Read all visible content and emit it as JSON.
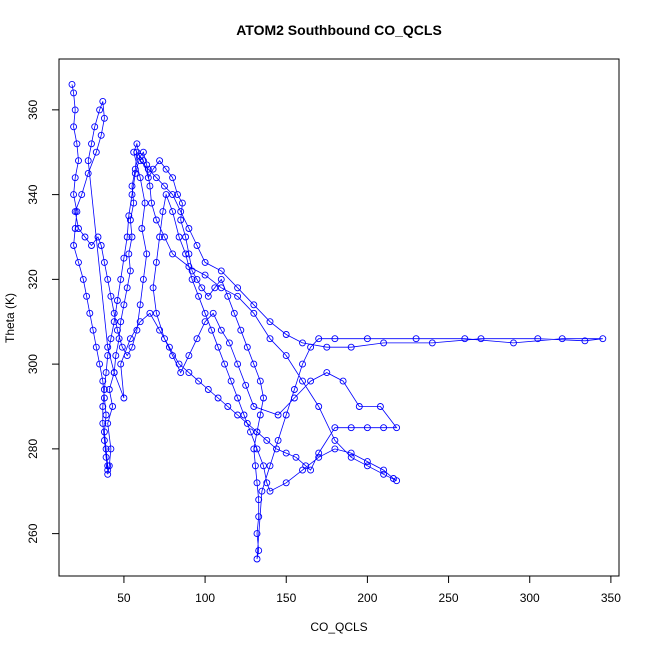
{
  "chart_data": {
    "type": "scatter",
    "title": "ATOM2 Southbound CO_QCLS",
    "xlabel": "CO_QCLS",
    "ylabel": "Theta (K)",
    "xlim": [
      10,
      355
    ],
    "ylim": [
      250,
      372
    ],
    "xticks": [
      50,
      100,
      150,
      200,
      250,
      300,
      350
    ],
    "yticks": [
      260,
      280,
      300,
      320,
      340,
      360
    ],
    "grid": false,
    "marker": "open-circle",
    "connected": true,
    "color": "#0000ff",
    "series": [
      {
        "name": "",
        "points": [
          [
            18,
            366
          ],
          [
            19,
            364
          ],
          [
            20,
            360
          ],
          [
            19,
            356
          ],
          [
            21,
            352
          ],
          [
            22,
            348
          ],
          [
            20,
            344
          ],
          [
            19,
            340
          ],
          [
            21,
            336
          ],
          [
            20,
            332
          ],
          [
            19,
            328
          ],
          [
            22,
            324
          ],
          [
            25,
            320
          ],
          [
            27,
            316
          ],
          [
            29,
            312
          ],
          [
            31,
            308
          ],
          [
            33,
            304
          ],
          [
            35,
            300
          ],
          [
            37,
            296
          ],
          [
            38,
            292
          ],
          [
            39,
            288
          ],
          [
            38,
            284
          ],
          [
            39,
            280
          ],
          [
            40,
            276
          ],
          [
            40,
            274
          ],
          [
            41,
            276
          ],
          [
            42,
            280
          ],
          [
            40,
            286
          ],
          [
            43,
            290
          ],
          [
            41,
            294
          ],
          [
            44,
            298
          ],
          [
            45,
            302
          ],
          [
            47,
            306
          ],
          [
            48,
            310
          ],
          [
            50,
            314
          ],
          [
            52,
            318
          ],
          [
            54,
            322
          ],
          [
            53,
            326
          ],
          [
            55,
            330
          ],
          [
            54,
            334
          ],
          [
            56,
            338
          ],
          [
            55,
            342
          ],
          [
            57,
            346
          ],
          [
            58,
            350
          ],
          [
            62,
            348
          ],
          [
            65,
            344
          ],
          [
            68,
            346
          ],
          [
            72,
            348
          ],
          [
            76,
            346
          ],
          [
            80,
            344
          ],
          [
            83,
            340
          ],
          [
            86,
            338
          ],
          [
            85,
            334
          ],
          [
            88,
            330
          ],
          [
            90,
            326
          ],
          [
            92,
            322
          ],
          [
            95,
            320
          ],
          [
            98,
            318
          ],
          [
            102,
            316
          ],
          [
            106,
            318
          ],
          [
            110,
            320
          ],
          [
            114,
            316
          ],
          [
            118,
            312
          ],
          [
            122,
            308
          ],
          [
            126,
            304
          ],
          [
            130,
            300
          ],
          [
            134,
            296
          ],
          [
            136,
            292
          ],
          [
            134,
            288
          ],
          [
            132,
            284
          ],
          [
            130,
            280
          ],
          [
            131,
            276
          ],
          [
            132,
            272
          ],
          [
            133,
            268
          ],
          [
            133,
            264
          ],
          [
            132,
            260
          ],
          [
            133,
            256
          ],
          [
            132,
            254
          ],
          [
            135,
            270
          ],
          [
            140,
            276
          ],
          [
            145,
            282
          ],
          [
            150,
            288
          ],
          [
            155,
            294
          ],
          [
            160,
            300
          ],
          [
            165,
            304
          ],
          [
            170,
            306
          ],
          [
            180,
            306
          ],
          [
            200,
            306
          ],
          [
            230,
            306
          ],
          [
            260,
            306
          ],
          [
            290,
            305
          ],
          [
            320,
            306
          ],
          [
            345,
            306
          ],
          [
            334,
            305.5
          ],
          [
            305,
            306
          ],
          [
            270,
            306
          ],
          [
            240,
            305
          ],
          [
            210,
            305
          ],
          [
            190,
            304
          ],
          [
            175,
            304
          ],
          [
            160,
            305
          ],
          [
            150,
            307
          ],
          [
            140,
            310
          ],
          [
            130,
            314
          ],
          [
            120,
            318
          ],
          [
            110,
            322
          ],
          [
            100,
            324
          ],
          [
            95,
            328
          ],
          [
            90,
            332
          ],
          [
            85,
            336
          ],
          [
            80,
            340
          ],
          [
            75,
            342
          ],
          [
            70,
            344
          ],
          [
            65,
            346
          ],
          [
            60,
            348
          ],
          [
            58,
            352
          ],
          [
            56,
            350
          ],
          [
            60,
            344
          ],
          [
            63,
            338
          ],
          [
            61,
            332
          ],
          [
            64,
            326
          ],
          [
            62,
            320
          ],
          [
            60,
            314
          ],
          [
            58,
            308
          ],
          [
            55,
            304
          ],
          [
            52,
            302
          ],
          [
            49,
            304
          ],
          [
            46,
            308
          ],
          [
            44,
            312
          ],
          [
            42,
            316
          ],
          [
            40,
            320
          ],
          [
            38,
            324
          ],
          [
            36,
            328
          ],
          [
            34,
            330
          ],
          [
            30,
            328
          ],
          [
            26,
            330
          ],
          [
            22,
            332
          ],
          [
            20,
            336
          ],
          [
            24,
            340
          ],
          [
            28,
            345
          ],
          [
            33,
            350
          ],
          [
            36,
            354
          ],
          [
            38,
            358
          ],
          [
            37,
            362
          ],
          [
            35,
            360
          ],
          [
            32,
            356
          ],
          [
            30,
            352
          ],
          [
            28,
            348
          ],
          [
            40,
            304
          ],
          [
            44,
            298
          ],
          [
            50,
            292
          ],
          [
            48,
            300
          ],
          [
            54,
            306
          ],
          [
            60,
            310
          ],
          [
            66,
            312
          ],
          [
            72,
            308
          ],
          [
            78,
            304
          ],
          [
            84,
            300
          ],
          [
            90,
            298
          ],
          [
            96,
            296
          ],
          [
            102,
            294
          ],
          [
            108,
            292
          ],
          [
            114,
            290
          ],
          [
            120,
            288
          ],
          [
            126,
            286
          ],
          [
            132,
            284
          ],
          [
            138,
            282
          ],
          [
            144,
            280
          ],
          [
            150,
            279
          ],
          [
            156,
            278
          ],
          [
            162,
            276
          ],
          [
            165,
            275
          ],
          [
            170,
            279
          ],
          [
            180,
            285
          ],
          [
            190,
            285
          ],
          [
            200,
            285
          ],
          [
            210,
            285
          ],
          [
            218,
            285
          ],
          [
            208,
            290
          ],
          [
            195,
            290
          ],
          [
            185,
            296
          ],
          [
            175,
            298
          ],
          [
            165,
            296
          ],
          [
            155,
            292
          ],
          [
            145,
            288
          ],
          [
            130,
            290
          ],
          [
            125,
            295
          ],
          [
            120,
            300
          ],
          [
            115,
            305
          ],
          [
            110,
            308
          ],
          [
            105,
            312
          ],
          [
            100,
            310
          ],
          [
            95,
            306
          ],
          [
            90,
            302
          ],
          [
            85,
            298
          ],
          [
            80,
            302
          ],
          [
            75,
            306
          ],
          [
            70,
            312
          ],
          [
            68,
            318
          ],
          [
            70,
            324
          ],
          [
            72,
            330
          ],
          [
            74,
            336
          ],
          [
            76,
            340
          ],
          [
            80,
            336
          ],
          [
            84,
            330
          ],
          [
            88,
            326
          ],
          [
            92,
            320
          ],
          [
            96,
            316
          ],
          [
            100,
            312
          ],
          [
            104,
            308
          ],
          [
            108,
            304
          ],
          [
            112,
            300
          ],
          [
            116,
            296
          ],
          [
            120,
            292
          ],
          [
            124,
            288
          ],
          [
            128,
            284
          ],
          [
            132,
            280
          ],
          [
            136,
            276
          ],
          [
            138,
            272
          ],
          [
            140,
            270
          ],
          [
            150,
            272
          ],
          [
            160,
            275
          ],
          [
            170,
            278
          ],
          [
            180,
            280
          ],
          [
            190,
            279
          ],
          [
            200,
            277
          ],
          [
            210,
            275
          ],
          [
            216,
            273
          ],
          [
            218,
            272.5
          ],
          [
            210,
            274
          ],
          [
            200,
            276
          ],
          [
            190,
            278
          ],
          [
            180,
            282
          ],
          [
            170,
            290
          ],
          [
            160,
            296
          ],
          [
            150,
            302
          ],
          [
            140,
            306
          ],
          [
            130,
            312
          ],
          [
            120,
            316
          ],
          [
            110,
            318
          ],
          [
            100,
            321
          ],
          [
            90,
            323
          ],
          [
            80,
            326
          ],
          [
            75,
            330
          ],
          [
            70,
            334
          ],
          [
            67,
            338
          ],
          [
            66,
            342
          ],
          [
            64,
            347
          ],
          [
            62,
            350
          ],
          [
            60,
            349
          ],
          [
            57,
            345
          ],
          [
            55,
            340
          ],
          [
            53,
            335
          ],
          [
            52,
            330
          ],
          [
            50,
            325
          ],
          [
            48,
            320
          ],
          [
            46,
            315
          ],
          [
            44,
            310
          ],
          [
            42,
            306
          ],
          [
            40,
            302
          ],
          [
            39,
            298
          ],
          [
            38,
            294
          ],
          [
            37,
            290
          ],
          [
            37,
            286
          ],
          [
            38,
            282
          ],
          [
            39,
            278
          ],
          [
            40,
            275
          ]
        ]
      }
    ]
  }
}
